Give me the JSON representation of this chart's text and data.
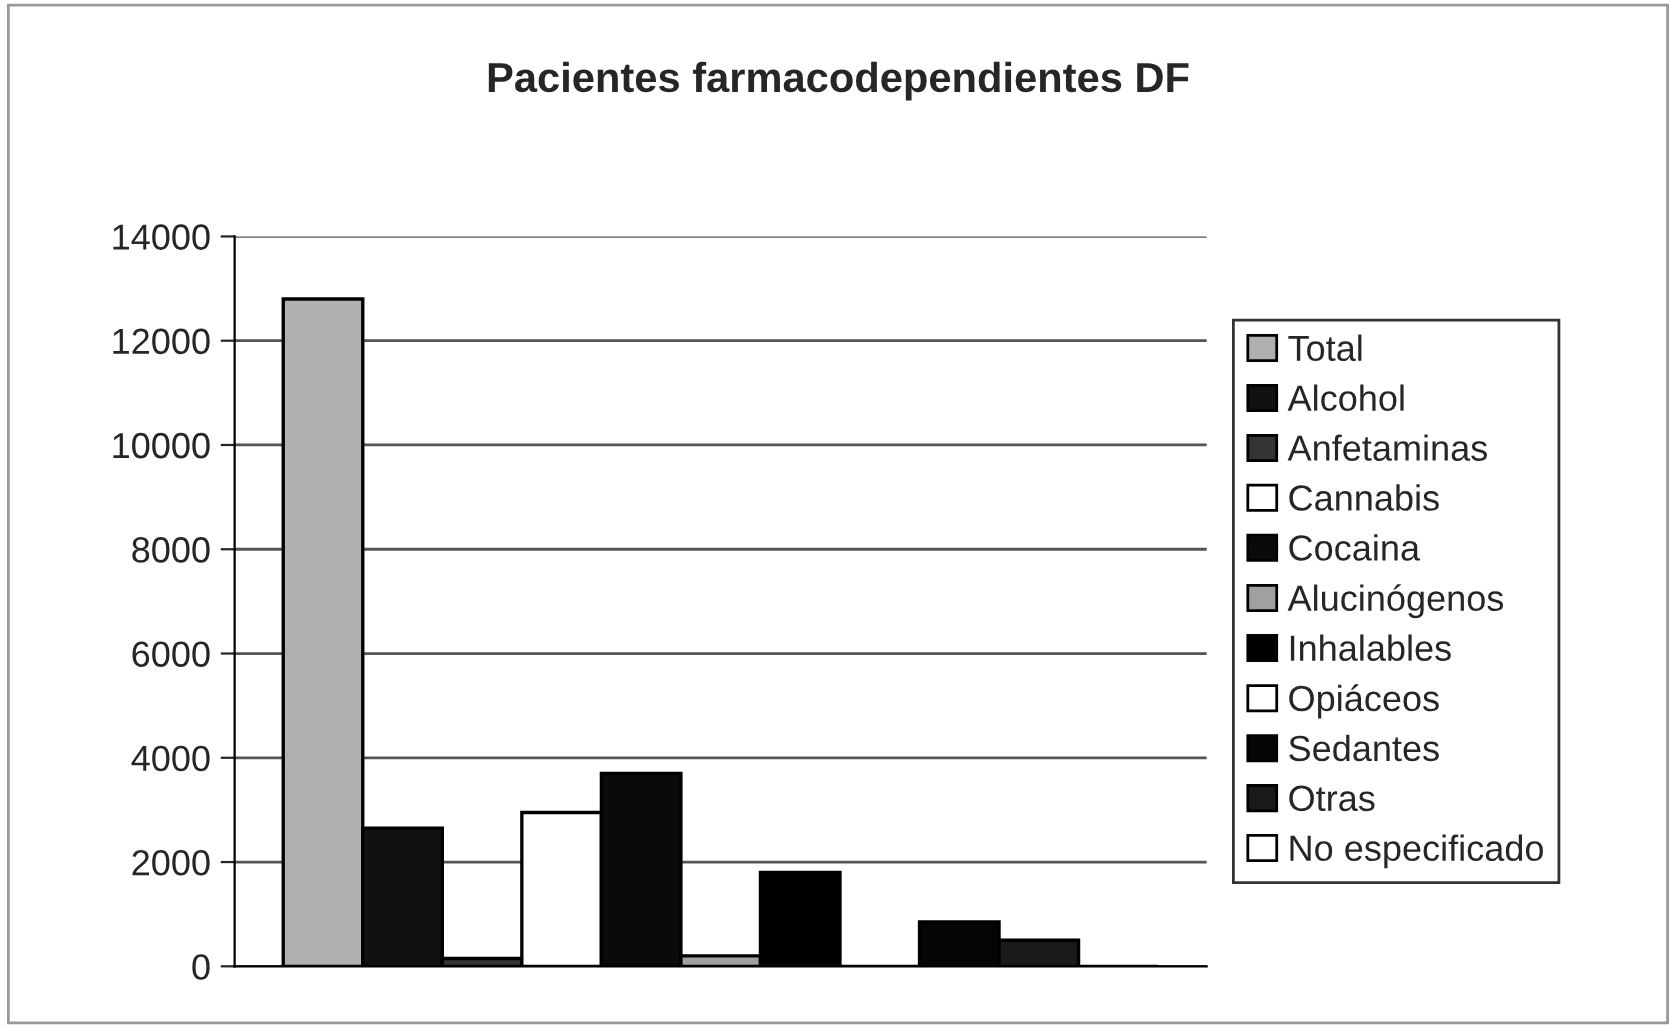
{
  "chart_data": {
    "type": "bar",
    "title": "Pacientes farmacodependientes DF",
    "categories": [
      null
    ],
    "series": [
      {
        "name": "Total",
        "color": "#b0b0b0",
        "values": [
          12800
        ]
      },
      {
        "name": "Alcohol",
        "color": "#111111",
        "values": [
          2650
        ]
      },
      {
        "name": "Anfetaminas",
        "color": "#333333",
        "values": [
          150
        ]
      },
      {
        "name": "Cannabis",
        "color": "#ffffff",
        "values": [
          2950
        ]
      },
      {
        "name": "Cocaina",
        "color": "#0a0a0a",
        "values": [
          3700
        ]
      },
      {
        "name": "Alucinógenos",
        "color": "#a0a0a0",
        "values": [
          200
        ]
      },
      {
        "name": "Inhalables",
        "color": "#000000",
        "values": [
          1800
        ]
      },
      {
        "name": "Opiáceos",
        "color": "#ffffff",
        "values": [
          null
        ]
      },
      {
        "name": "Sedantes",
        "color": "#050505",
        "values": [
          850
        ]
      },
      {
        "name": "Otras",
        "color": "#1a1a1a",
        "values": [
          500
        ]
      },
      {
        "name": "No especificado",
        "color": "#ffffff",
        "values": [
          null
        ]
      }
    ],
    "ylim": [
      0,
      14000
    ],
    "yticks": [
      0,
      2000,
      4000,
      6000,
      8000,
      10000,
      12000,
      14000
    ],
    "grid": "y",
    "legend": "right"
  }
}
